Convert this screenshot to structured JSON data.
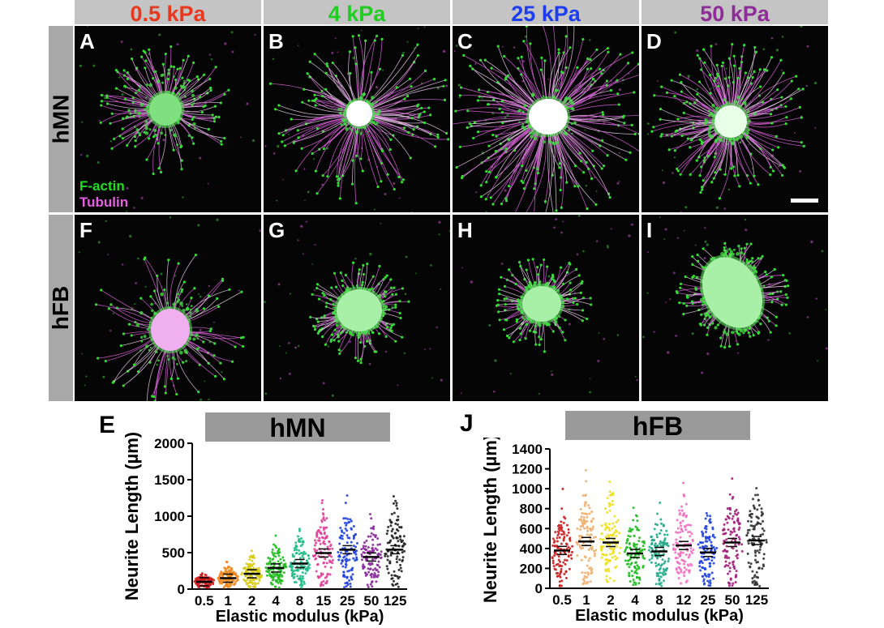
{
  "columns": [
    {
      "label": "0.5 kPa",
      "color": "#e8381f"
    },
    {
      "label": "4 kPa",
      "color": "#22cc22"
    },
    {
      "label": "25 kPa",
      "color": "#1d3ef0"
    },
    {
      "label": "50 kPa",
      "color": "#8e2c98"
    }
  ],
  "rows": [
    {
      "label": "hMN"
    },
    {
      "label": "hFB"
    }
  ],
  "panels": [
    "A",
    "B",
    "C",
    "D",
    "F",
    "G",
    "H",
    "I"
  ],
  "legend": {
    "factin": {
      "label": "F-actin",
      "color": "#22dd22"
    },
    "tubulin": {
      "label": "Tubulin",
      "color": "#e060e0"
    }
  },
  "chart_data": [
    {
      "type": "scatter",
      "panel_letter": "E",
      "title": "hMN",
      "xlabel": "Elastic modulus (kPa)",
      "ylabel": "Neurite Length (µm)",
      "categories": [
        "0.5",
        "1",
        "2",
        "4",
        "8",
        "15",
        "25",
        "50",
        "125"
      ],
      "means": [
        100,
        150,
        210,
        290,
        350,
        495,
        540,
        440,
        540
      ],
      "ylim": [
        0,
        2000
      ],
      "yticks": [
        "0",
        "500",
        "1000",
        "1500",
        "2000"
      ],
      "colors": [
        "#d02020",
        "#f08a20",
        "#d8cc18",
        "#22bb22",
        "#22bb88",
        "#e0409a",
        "#2244dd",
        "#8a2c9a",
        "#222222"
      ]
    },
    {
      "type": "scatter",
      "panel_letter": "J",
      "title": "hFB",
      "xlabel": "Elastic modulus (kPa)",
      "ylabel": "Neurite Length (µm)",
      "categories": [
        "0.5",
        "1",
        "2",
        "4",
        "8",
        "12",
        "25",
        "50",
        "125"
      ],
      "means": [
        380,
        470,
        460,
        350,
        370,
        430,
        360,
        460,
        480
      ],
      "ylim": [
        0,
        1400
      ],
      "yticks": [
        "0",
        "200",
        "400",
        "600",
        "800",
        "1000",
        "1200",
        "1400"
      ],
      "colors": [
        "#c82020",
        "#f0b070",
        "#f0e020",
        "#22bb22",
        "#22aa88",
        "#f070c0",
        "#2244dd",
        "#a0207a",
        "#333333"
      ]
    }
  ]
}
